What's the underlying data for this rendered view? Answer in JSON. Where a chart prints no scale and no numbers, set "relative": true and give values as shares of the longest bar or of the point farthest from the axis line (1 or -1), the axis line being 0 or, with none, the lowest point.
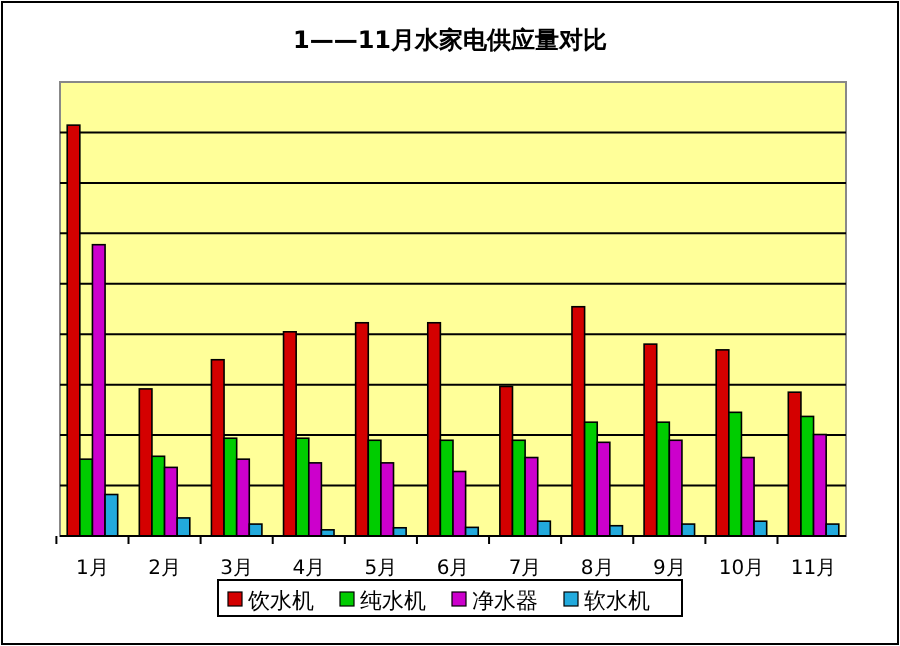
{
  "chart_data": {
    "type": "bar",
    "title": "1——11月水家电供应量对比",
    "relative": true,
    "grid": "y",
    "legend": "bottom",
    "categories": [
      "1月",
      "2月",
      "3月",
      "4月",
      "5月",
      "6月",
      "7月",
      "8月",
      "9月",
      "10月",
      "11月"
    ],
    "series": [
      {
        "name": "饮水机",
        "color": "#d40000",
        "values": [
          1,
          0.358,
          0.429,
          0.497,
          0.519,
          0.519,
          0.364,
          0.558,
          0.467,
          0.453,
          0.35
        ]
      },
      {
        "name": "纯水机",
        "color": "#00cc00",
        "values": [
          0.187,
          0.194,
          0.238,
          0.238,
          0.233,
          0.233,
          0.233,
          0.277,
          0.277,
          0.301,
          0.291
        ]
      },
      {
        "name": "净水器",
        "color": "#cc00cc",
        "values": [
          0.709,
          0.167,
          0.187,
          0.178,
          0.178,
          0.157,
          0.191,
          0.228,
          0.233,
          0.191,
          0.247
        ]
      },
      {
        "name": "软水机",
        "color": "#22aadd",
        "values": [
          0.101,
          0.044,
          0.029,
          0.015,
          0.02,
          0.021,
          0.036,
          0.025,
          0.029,
          0.036,
          0.029
        ]
      }
    ]
  }
}
